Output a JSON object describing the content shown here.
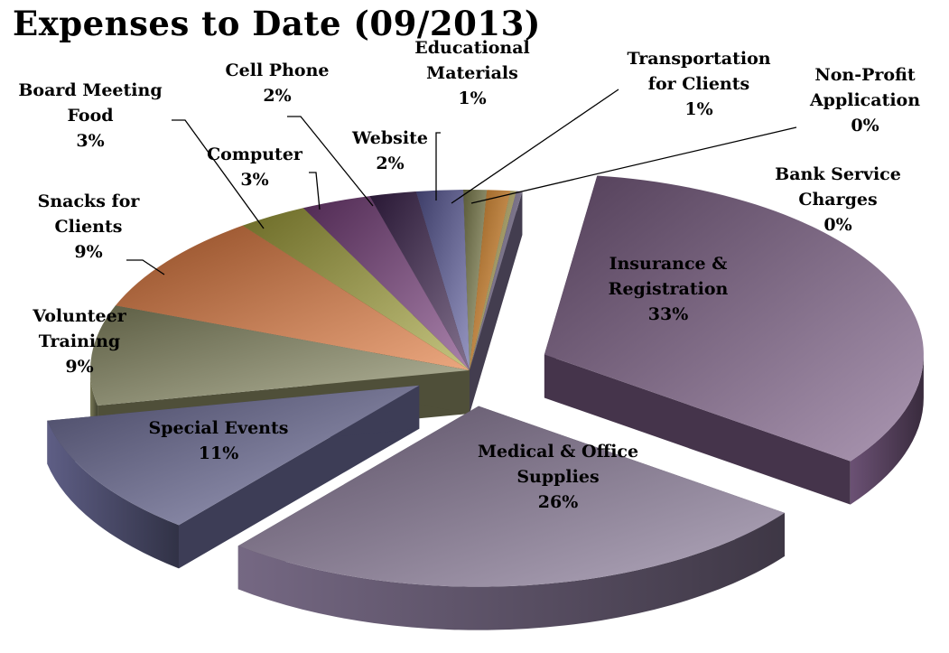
{
  "chart_data": {
    "type": "pie",
    "title": "Expenses to Date (09/2013)",
    "exploded": true,
    "three_d": true,
    "labels_show": "category and percentage",
    "slices": [
      {
        "name": "Insurance & Registration",
        "lines": [
          "Insurance &",
          "Registration"
        ],
        "percent_label": "33%",
        "value": 33,
        "color": "#7e5f88"
      },
      {
        "name": "Medical & Office Supplies",
        "lines": [
          "Medical & Office",
          "Supplies"
        ],
        "percent_label": "26%",
        "value": 26,
        "color": "#8a7a9a"
      },
      {
        "name": "Special Events",
        "lines": [
          "Special Events"
        ],
        "percent_label": "11%",
        "value": 11,
        "color": "#6e6f9c"
      },
      {
        "name": "Volunteer Training",
        "lines": [
          "Volunteer",
          "Training"
        ],
        "percent_label": "9%",
        "value": 9,
        "color": "#8f9068"
      },
      {
        "name": "Snacks for Clients",
        "lines": [
          "Snacks for",
          "Clients"
        ],
        "percent_label": "9%",
        "value": 9,
        "color": "#e0773a"
      },
      {
        "name": "Board Meeting Food",
        "lines": [
          "Board Meeting",
          "Food"
        ],
        "percent_label": "3%",
        "value": 3,
        "color": "#a6a43c"
      },
      {
        "name": "Computer",
        "lines": [
          "Computer"
        ],
        "percent_label": "3%",
        "value": 3,
        "color": "#7a3f7e"
      },
      {
        "name": "Cell Phone",
        "lines": [
          "Cell Phone"
        ],
        "percent_label": "2%",
        "value": 2,
        "color": "#3e2450"
      },
      {
        "name": "Website",
        "lines": [
          "Website"
        ],
        "percent_label": "2%",
        "value": 2,
        "color": "#5e5ea0"
      },
      {
        "name": "Educational Materials",
        "lines": [
          "Educational",
          "Materials"
        ],
        "percent_label": "1%",
        "value": 1,
        "color": "#8a8b56"
      },
      {
        "name": "Transportation for Clients",
        "lines": [
          "Transportation",
          "for Clients"
        ],
        "percent_label": "1%",
        "value": 1,
        "color": "#e08a2a"
      },
      {
        "name": "Non-Profit Application",
        "lines": [
          "Non-Profit",
          "Application"
        ],
        "percent_label": "0%",
        "value": 0.25,
        "color": "#b4a85a"
      },
      {
        "name": "Bank Service Charges",
        "lines": [
          "Bank Service",
          "Charges"
        ],
        "percent_label": "0%",
        "value": 0.25,
        "color": "#7a6f90"
      }
    ]
  }
}
